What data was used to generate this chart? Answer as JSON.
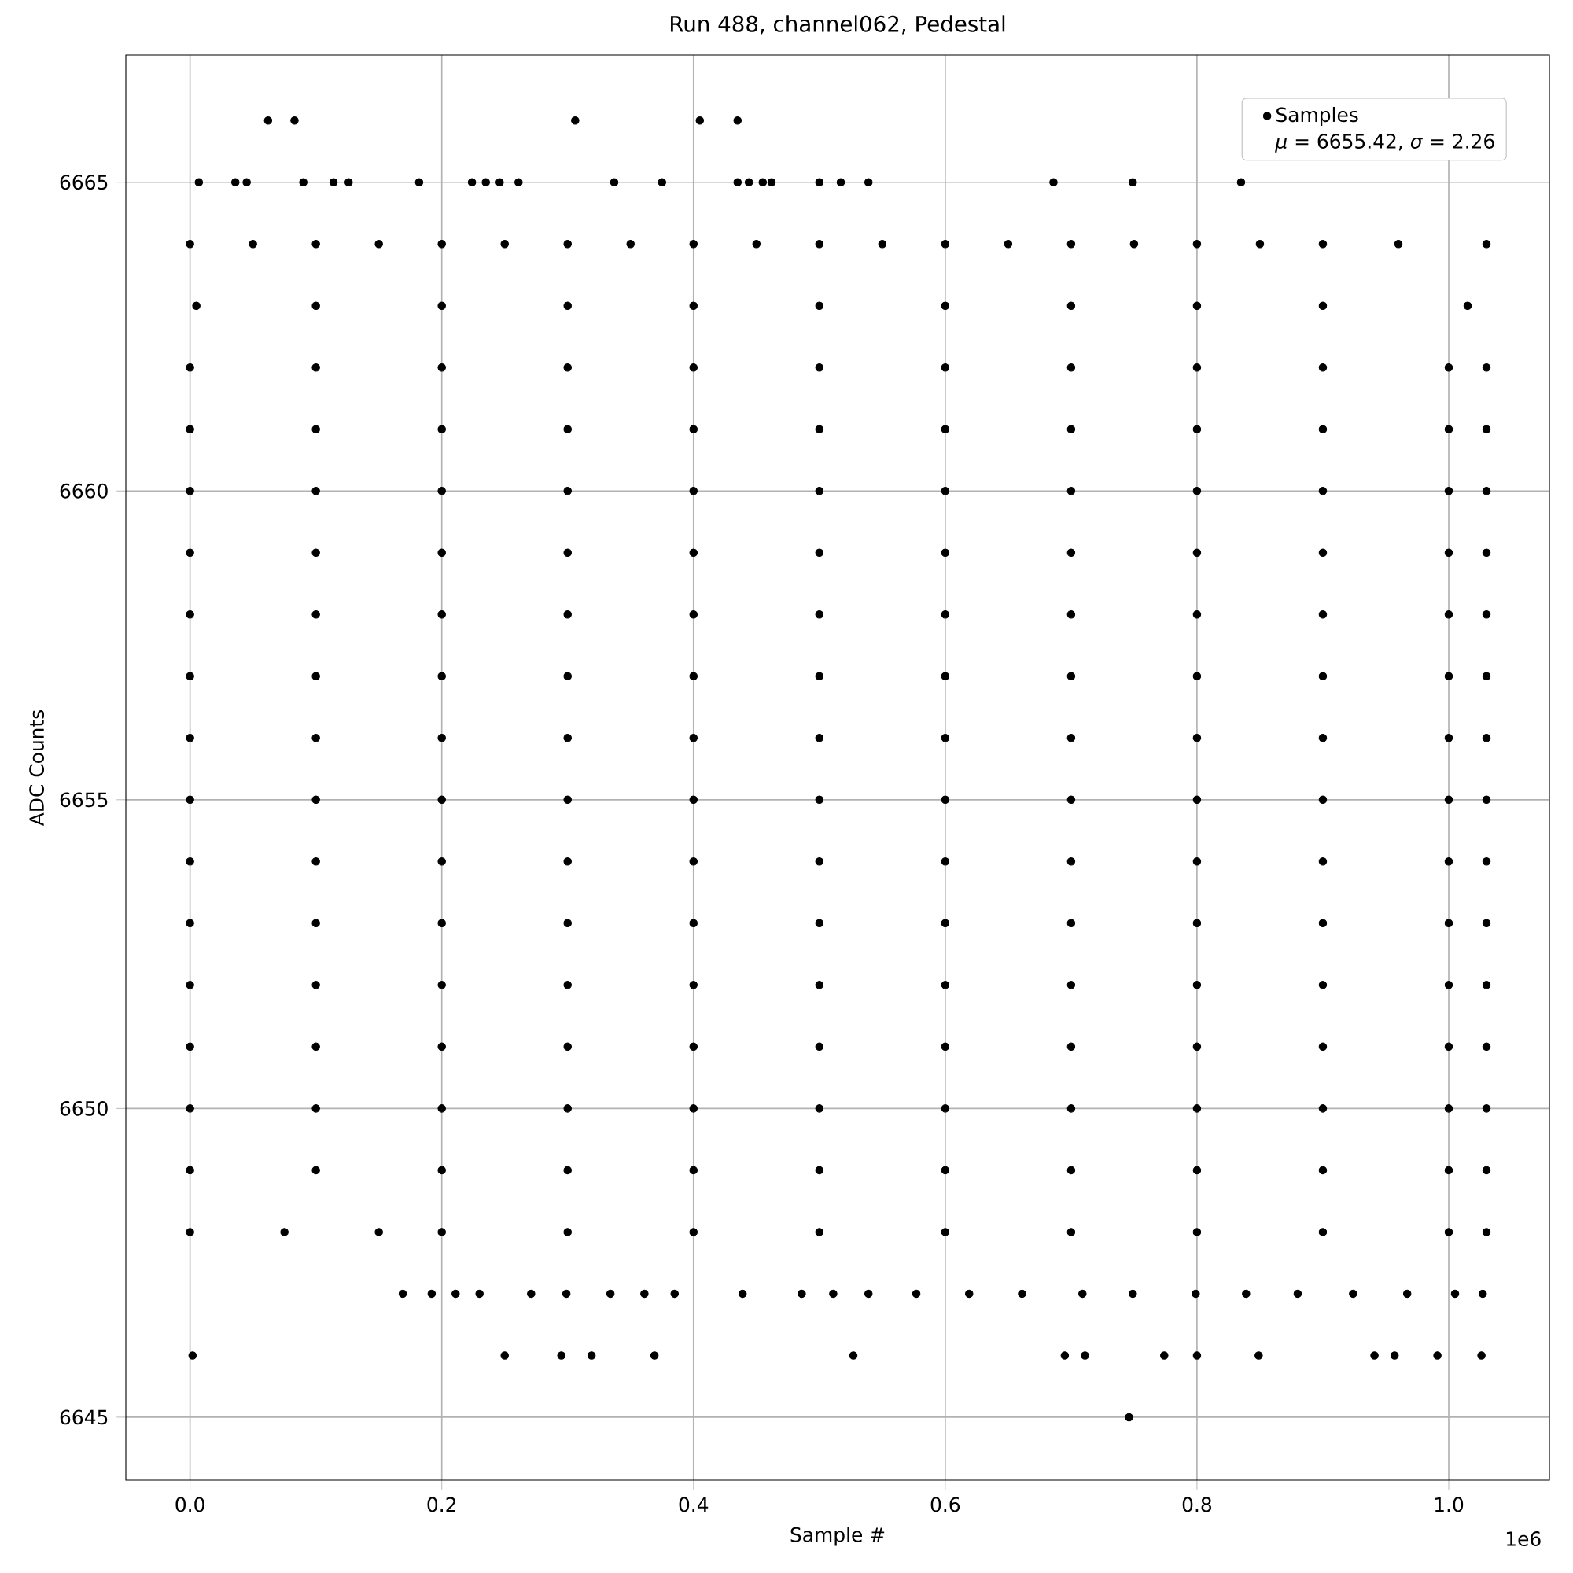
{
  "chart_data": {
    "type": "scatter",
    "title": "Run 488, channel062, Pedestal",
    "xlabel": "Sample #",
    "ylabel": "ADC Counts",
    "annotations": [
      "1e6",
      "*μ* = 6655.42, *σ* = 2.26"
    ],
    "xlim": [
      -0.051,
      1.08
    ],
    "ylim": [
      6643.98,
      6667.06
    ],
    "xticks": [
      {
        "value": 0,
        "label": "0.0"
      },
      0.2,
      0.4,
      0.6,
      0.8,
      {
        "value": 1,
        "label": "1.0"
      }
    ],
    "yticks": [
      6645,
      6650,
      6655,
      6660,
      6665
    ],
    "grid": true,
    "legend": "top right",
    "series": [
      {
        "name": "Samples",
        "color": "#000000",
        "x": [
          0.062,
          0.083,
          0.306,
          0.405,
          0.435,
          0.007,
          0.036,
          0.045,
          0.09,
          0.114,
          0.126,
          0.182,
          0.224,
          0.235,
          0.246,
          0.261,
          0.337,
          0.375,
          0.435,
          0.444,
          0.455,
          0.462,
          0.5,
          0.517,
          0.539,
          0.686,
          0.749,
          0.835,
          0,
          0.05,
          0.1,
          0.15,
          0.2,
          0.25,
          0.3,
          0.35,
          0.4,
          0.45,
          0.5,
          0.55,
          0.6,
          0.65,
          0.7,
          0.75,
          0.8,
          0.85,
          0.9,
          0.96,
          1.03,
          0.005,
          0.1,
          0.2,
          0.3,
          0.4,
          0.5,
          0.6,
          0.7,
          0.8,
          0.9,
          1.015,
          0,
          0.1,
          0.2,
          0.3,
          0.4,
          0.5,
          0.6,
          0.7,
          0.8,
          0.9,
          1,
          1.03,
          0,
          0.1,
          0.2,
          0.3,
          0.4,
          0.5,
          0.6,
          0.7,
          0.8,
          0.9,
          1,
          1.03,
          0,
          0.1,
          0.2,
          0.3,
          0.4,
          0.5,
          0.6,
          0.7,
          0.8,
          0.9,
          1,
          1.03,
          0,
          0.1,
          0.2,
          0.3,
          0.4,
          0.5,
          0.6,
          0.7,
          0.8,
          0.9,
          1,
          1.03,
          0,
          0.1,
          0.2,
          0.3,
          0.4,
          0.5,
          0.6,
          0.7,
          0.8,
          0.9,
          1,
          1.03,
          0,
          0.1,
          0.2,
          0.3,
          0.4,
          0.5,
          0.6,
          0.7,
          0.8,
          0.9,
          1,
          1.03,
          0,
          0.1,
          0.2,
          0.3,
          0.4,
          0.5,
          0.6,
          0.7,
          0.8,
          0.9,
          1,
          1.03,
          0,
          0.1,
          0.2,
          0.3,
          0.4,
          0.5,
          0.6,
          0.7,
          0.8,
          0.9,
          1,
          1.03,
          0,
          0.1,
          0.2,
          0.3,
          0.4,
          0.5,
          0.6,
          0.7,
          0.8,
          0.9,
          1,
          1.03,
          0,
          0.1,
          0.2,
          0.3,
          0.4,
          0.5,
          0.6,
          0.7,
          0.8,
          0.9,
          1,
          1.03,
          0,
          0.1,
          0.2,
          0.3,
          0.4,
          0.5,
          0.6,
          0.7,
          0.8,
          0.9,
          1,
          1.03,
          0,
          0.1,
          0.2,
          0.3,
          0.4,
          0.5,
          0.6,
          0.7,
          0.8,
          0.9,
          1,
          1.03,
          0,
          0.1,
          0.2,
          0.3,
          0.4,
          0.5,
          0.6,
          0.7,
          0.8,
          0.9,
          1,
          1.03,
          0,
          0.1,
          0.2,
          0.3,
          0.4,
          0.5,
          0.6,
          0.7,
          0.8,
          0.9,
          1,
          1.03,
          0,
          0.075,
          0.15,
          0.2,
          0.3,
          0.4,
          0.5,
          0.6,
          0.7,
          0.8,
          0.9,
          1,
          1.03,
          0.169,
          0.192,
          0.211,
          0.23,
          0.271,
          0.299,
          0.334,
          0.361,
          0.385,
          0.439,
          0.486,
          0.511,
          0.539,
          0.577,
          0.619,
          0.661,
          0.709,
          0.749,
          0.799,
          0.839,
          0.88,
          0.924,
          0.967,
          1.005,
          1.027,
          0.002,
          0.25,
          0.295,
          0.319,
          0.369,
          0.527,
          0.695,
          0.711,
          0.774,
          0.8,
          0.849,
          0.941,
          0.957,
          0.991,
          1.026,
          0.746
        ],
        "values": [
          6666,
          6666,
          6666,
          6666,
          6666,
          6665,
          6665,
          6665,
          6665,
          6665,
          6665,
          6665,
          6665,
          6665,
          6665,
          6665,
          6665,
          6665,
          6665,
          6665,
          6665,
          6665,
          6665,
          6665,
          6665,
          6665,
          6665,
          6665,
          6664,
          6664,
          6664,
          6664,
          6664,
          6664,
          6664,
          6664,
          6664,
          6664,
          6664,
          6664,
          6664,
          6664,
          6664,
          6664,
          6664,
          6664,
          6664,
          6664,
          6664,
          6663,
          6663,
          6663,
          6663,
          6663,
          6663,
          6663,
          6663,
          6663,
          6663,
          6663,
          6662,
          6662,
          6662,
          6662,
          6662,
          6662,
          6662,
          6662,
          6662,
          6662,
          6662,
          6662,
          6661,
          6661,
          6661,
          6661,
          6661,
          6661,
          6661,
          6661,
          6661,
          6661,
          6661,
          6661,
          6660,
          6660,
          6660,
          6660,
          6660,
          6660,
          6660,
          6660,
          6660,
          6660,
          6660,
          6660,
          6659,
          6659,
          6659,
          6659,
          6659,
          6659,
          6659,
          6659,
          6659,
          6659,
          6659,
          6659,
          6658,
          6658,
          6658,
          6658,
          6658,
          6658,
          6658,
          6658,
          6658,
          6658,
          6658,
          6658,
          6657,
          6657,
          6657,
          6657,
          6657,
          6657,
          6657,
          6657,
          6657,
          6657,
          6657,
          6657,
          6656,
          6656,
          6656,
          6656,
          6656,
          6656,
          6656,
          6656,
          6656,
          6656,
          6656,
          6656,
          6655,
          6655,
          6655,
          6655,
          6655,
          6655,
          6655,
          6655,
          6655,
          6655,
          6655,
          6655,
          6654,
          6654,
          6654,
          6654,
          6654,
          6654,
          6654,
          6654,
          6654,
          6654,
          6654,
          6654,
          6653,
          6653,
          6653,
          6653,
          6653,
          6653,
          6653,
          6653,
          6653,
          6653,
          6653,
          6653,
          6652,
          6652,
          6652,
          6652,
          6652,
          6652,
          6652,
          6652,
          6652,
          6652,
          6652,
          6652,
          6651,
          6651,
          6651,
          6651,
          6651,
          6651,
          6651,
          6651,
          6651,
          6651,
          6651,
          6651,
          6650,
          6650,
          6650,
          6650,
          6650,
          6650,
          6650,
          6650,
          6650,
          6650,
          6650,
          6650,
          6649,
          6649,
          6649,
          6649,
          6649,
          6649,
          6649,
          6649,
          6649,
          6649,
          6649,
          6649,
          6648,
          6648,
          6648,
          6648,
          6648,
          6648,
          6648,
          6648,
          6648,
          6648,
          6648,
          6648,
          6648,
          6647,
          6647,
          6647,
          6647,
          6647,
          6647,
          6647,
          6647,
          6647,
          6647,
          6647,
          6647,
          6647,
          6647,
          6647,
          6647,
          6647,
          6647,
          6647,
          6647,
          6647,
          6647,
          6647,
          6647,
          6647,
          6646,
          6646,
          6646,
          6646,
          6646,
          6646,
          6646,
          6646,
          6646,
          6646,
          6646,
          6646,
          6646,
          6646,
          6646,
          6645
        ]
      }
    ]
  }
}
